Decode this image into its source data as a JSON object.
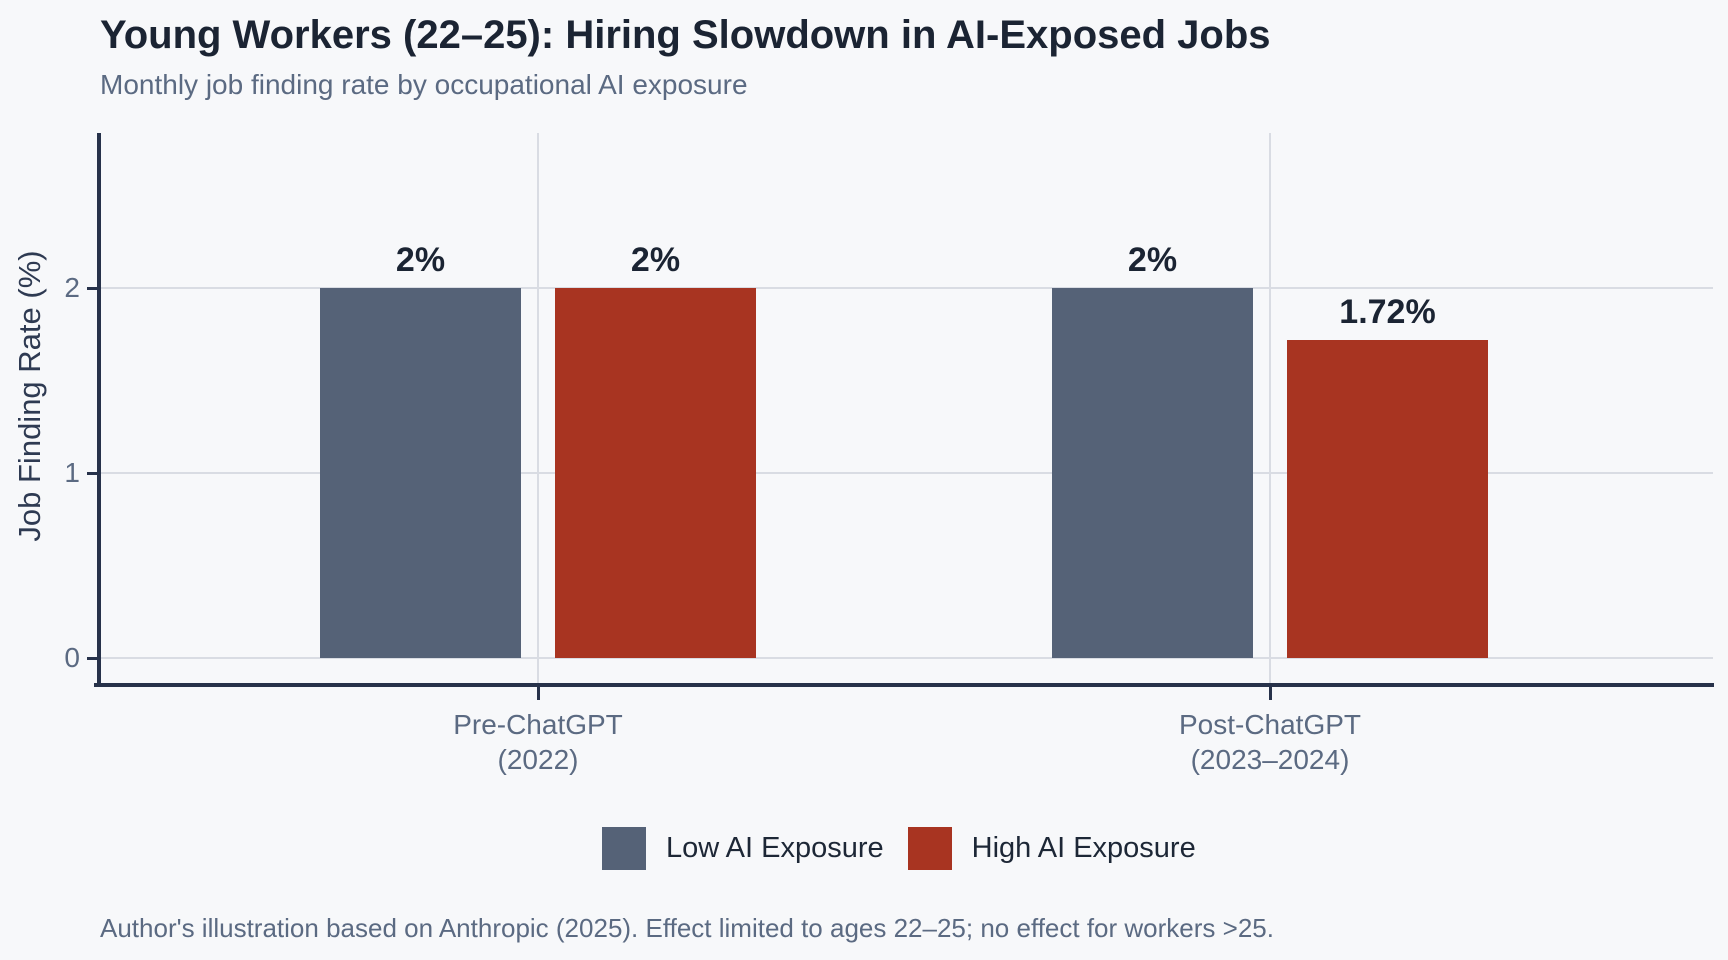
{
  "chart_data": {
    "type": "bar",
    "title": "Young Workers (22–25): Hiring Slowdown in AI-Exposed Jobs",
    "subtitle": "Monthly job finding rate by occupational AI exposure",
    "ylabel": "Job Finding Rate (%)",
    "xlabel": "",
    "categories": [
      "Pre-ChatGPT (2022)",
      "Post-ChatGPT (2023–2024)"
    ],
    "category_lines": [
      [
        "Pre-ChatGPT",
        "(2022)"
      ],
      [
        "Post-ChatGPT",
        "(2023–2024)"
      ]
    ],
    "series": [
      {
        "name": "Low AI Exposure",
        "color": "#556277",
        "values": [
          2,
          2
        ],
        "bar_labels": [
          "2%",
          "2%"
        ]
      },
      {
        "name": "High AI Exposure",
        "color": "#a83421",
        "values": [
          2,
          1.72
        ],
        "bar_labels": [
          "2%",
          "1.72%"
        ]
      }
    ],
    "yticks": [
      0,
      1,
      2
    ],
    "ylim": [
      0,
      2.84
    ],
    "grid": true,
    "legend_position": "bottom",
    "caption": "Author's illustration based on Anthropic (2025). Effect limited to ages 22–25; no effect for workers >25."
  },
  "palette": {
    "background": "#f7f8fa",
    "gridline": "#d9dce3",
    "axis_spine": "#27324a",
    "text_dark": "#1b2433",
    "text_muted": "#5b6a82",
    "axis_title_color": "#2e3a52",
    "legend_text": "#1d2736"
  }
}
